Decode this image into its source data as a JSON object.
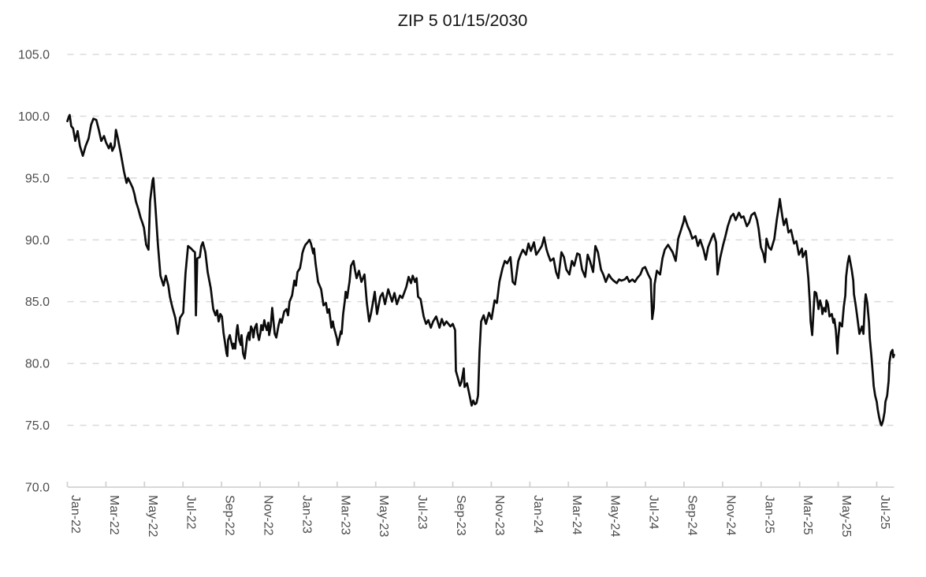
{
  "title": "ZIP 5 01/15/2030",
  "chart_data": {
    "type": "line",
    "title": "ZIP 5 01/15/2030",
    "xlabel": "",
    "ylabel": "",
    "x_unit": "months since Jan-2022",
    "x_tick_labels": [
      "Jan-22",
      "Mar-22",
      "May-22",
      "Jul-22",
      "Sep-22",
      "Nov-22",
      "Jan-23",
      "Mar-23",
      "May-23",
      "Jul-23",
      "Sep-23",
      "Nov-23",
      "Jan-24",
      "Mar-24",
      "May-24",
      "Jul-24",
      "Sep-24",
      "Nov-24",
      "Jan-25",
      "Mar-25",
      "May-25",
      "Jul-25"
    ],
    "x_tick_interval_months": 2,
    "y_tick_labels": [
      "105.0",
      "100.0",
      "95.0",
      "90.0",
      "85.0",
      "80.0",
      "75.0",
      "70.0"
    ],
    "y_ticks": [
      105.0,
      100.0,
      95.0,
      90.0,
      85.0,
      80.0,
      75.0,
      70.0
    ],
    "ylim": [
      70.0,
      105.0
    ],
    "xlim_months": [
      0,
      43.2
    ],
    "grid": "horizontal-dashed",
    "legend": "none",
    "line_color": "#0b0b0b",
    "grid_color": "#dcdcdc",
    "axis_color": "#d2d2d2",
    "label_color": "#4d4d4d",
    "title_color": "#141414",
    "series_name": "ZIP 5 01/15/2030 price",
    "points": [
      [
        0.0,
        99.6
      ],
      [
        0.06,
        99.9
      ],
      [
        0.12,
        100.1
      ],
      [
        0.2,
        99.2
      ],
      [
        0.3,
        99.0
      ],
      [
        0.41,
        98.0
      ],
      [
        0.53,
        98.8
      ],
      [
        0.65,
        97.6
      ],
      [
        0.8,
        96.8
      ],
      [
        0.95,
        97.6
      ],
      [
        1.1,
        98.2
      ],
      [
        1.23,
        99.3
      ],
      [
        1.35,
        99.8
      ],
      [
        1.5,
        99.7
      ],
      [
        1.63,
        98.9
      ],
      [
        1.76,
        98.0
      ],
      [
        1.9,
        98.4
      ],
      [
        2.0,
        97.9
      ],
      [
        2.15,
        97.4
      ],
      [
        2.25,
        97.8
      ],
      [
        2.33,
        97.2
      ],
      [
        2.45,
        97.6
      ],
      [
        2.52,
        98.9
      ],
      [
        2.62,
        98.2
      ],
      [
        2.78,
        96.9
      ],
      [
        2.94,
        95.5
      ],
      [
        3.07,
        94.6
      ],
      [
        3.15,
        95.0
      ],
      [
        3.27,
        94.6
      ],
      [
        3.39,
        94.2
      ],
      [
        3.48,
        93.7
      ],
      [
        3.56,
        93.1
      ],
      [
        3.68,
        92.5
      ],
      [
        3.8,
        91.8
      ],
      [
        3.89,
        91.4
      ],
      [
        3.97,
        91.0
      ],
      [
        4.09,
        89.6
      ],
      [
        4.21,
        89.2
      ],
      [
        4.29,
        93.1
      ],
      [
        4.42,
        94.8
      ],
      [
        4.46,
        95.0
      ],
      [
        4.58,
        92.4
      ],
      [
        4.7,
        89.6
      ],
      [
        4.83,
        87.1
      ],
      [
        4.99,
        86.3
      ],
      [
        5.11,
        87.1
      ],
      [
        5.24,
        86.3
      ],
      [
        5.32,
        85.4
      ],
      [
        5.44,
        84.6
      ],
      [
        5.6,
        83.7
      ],
      [
        5.73,
        82.4
      ],
      [
        5.85,
        83.7
      ],
      [
        6.01,
        84.1
      ],
      [
        6.13,
        87.3
      ],
      [
        6.26,
        89.5
      ],
      [
        6.42,
        89.3
      ],
      [
        6.54,
        89.1
      ],
      [
        6.62,
        89.0
      ],
      [
        6.67,
        83.9
      ],
      [
        6.74,
        88.5
      ],
      [
        6.87,
        88.6
      ],
      [
        6.95,
        89.5
      ],
      [
        7.03,
        89.8
      ],
      [
        7.16,
        89.0
      ],
      [
        7.28,
        87.4
      ],
      [
        7.44,
        86.1
      ],
      [
        7.57,
        84.4
      ],
      [
        7.69,
        83.9
      ],
      [
        7.77,
        84.3
      ],
      [
        7.85,
        83.4
      ],
      [
        7.94,
        84.0
      ],
      [
        8.02,
        83.8
      ],
      [
        8.1,
        82.5
      ],
      [
        8.18,
        81.7
      ],
      [
        8.26,
        80.8
      ],
      [
        8.3,
        80.6
      ],
      [
        8.34,
        81.9
      ],
      [
        8.43,
        82.3
      ],
      [
        8.51,
        81.7
      ],
      [
        8.59,
        81.2
      ],
      [
        8.63,
        81.6
      ],
      [
        8.71,
        81.2
      ],
      [
        8.79,
        82.7
      ],
      [
        8.83,
        83.1
      ],
      [
        8.92,
        81.9
      ],
      [
        9.0,
        81.5
      ],
      [
        9.04,
        82.3
      ],
      [
        9.12,
        80.8
      ],
      [
        9.2,
        80.4
      ],
      [
        9.33,
        82.1
      ],
      [
        9.41,
        82.5
      ],
      [
        9.45,
        81.9
      ],
      [
        9.53,
        83.0
      ],
      [
        9.61,
        82.7
      ],
      [
        9.65,
        82.1
      ],
      [
        9.73,
        82.9
      ],
      [
        9.82,
        83.2
      ],
      [
        9.86,
        82.5
      ],
      [
        9.94,
        81.9
      ],
      [
        10.02,
        82.5
      ],
      [
        10.06,
        83.1
      ],
      [
        10.14,
        82.7
      ],
      [
        10.22,
        83.5
      ],
      [
        10.27,
        83.1
      ],
      [
        10.35,
        82.7
      ],
      [
        10.43,
        83.3
      ],
      [
        10.47,
        82.3
      ],
      [
        10.55,
        83.0
      ],
      [
        10.63,
        84.5
      ],
      [
        10.76,
        82.4
      ],
      [
        10.84,
        82.1
      ],
      [
        10.96,
        83.1
      ],
      [
        11.04,
        83.6
      ],
      [
        11.12,
        83.3
      ],
      [
        11.25,
        84.2
      ],
      [
        11.37,
        84.4
      ],
      [
        11.45,
        83.9
      ],
      [
        11.53,
        85.0
      ],
      [
        11.66,
        85.5
      ],
      [
        11.78,
        86.7
      ],
      [
        11.86,
        86.3
      ],
      [
        11.94,
        87.4
      ],
      [
        12.07,
        87.7
      ],
      [
        12.15,
        88.4
      ],
      [
        12.19,
        88.9
      ],
      [
        12.27,
        89.3
      ],
      [
        12.35,
        89.6
      ],
      [
        12.47,
        89.8
      ],
      [
        12.56,
        90.0
      ],
      [
        12.64,
        89.7
      ],
      [
        12.76,
        88.9
      ],
      [
        12.8,
        89.3
      ],
      [
        12.88,
        88.1
      ],
      [
        13.01,
        86.6
      ],
      [
        13.17,
        86.0
      ],
      [
        13.29,
        84.7
      ],
      [
        13.42,
        84.9
      ],
      [
        13.5,
        84.1
      ],
      [
        13.58,
        84.4
      ],
      [
        13.7,
        82.9
      ],
      [
        13.78,
        83.4
      ],
      [
        13.82,
        83.0
      ],
      [
        13.99,
        82.0
      ],
      [
        14.03,
        81.5
      ],
      [
        14.11,
        82.0
      ],
      [
        14.19,
        82.6
      ],
      [
        14.23,
        82.4
      ],
      [
        14.31,
        84.0
      ],
      [
        14.4,
        85.1
      ],
      [
        14.44,
        85.8
      ],
      [
        14.52,
        85.3
      ],
      [
        14.6,
        86.2
      ],
      [
        14.64,
        86.6
      ],
      [
        14.72,
        87.9
      ],
      [
        14.85,
        88.3
      ],
      [
        14.93,
        87.5
      ],
      [
        15.01,
        86.9
      ],
      [
        15.13,
        87.5
      ],
      [
        15.26,
        86.6
      ],
      [
        15.42,
        87.2
      ],
      [
        15.54,
        84.9
      ],
      [
        15.66,
        83.4
      ],
      [
        15.75,
        84.0
      ],
      [
        15.83,
        84.7
      ],
      [
        15.95,
        85.8
      ],
      [
        16.07,
        84.0
      ],
      [
        16.24,
        85.4
      ],
      [
        16.36,
        85.7
      ],
      [
        16.48,
        84.8
      ],
      [
        16.65,
        86.0
      ],
      [
        16.85,
        85.0
      ],
      [
        16.97,
        85.7
      ],
      [
        17.1,
        84.8
      ],
      [
        17.26,
        85.5
      ],
      [
        17.38,
        85.3
      ],
      [
        17.59,
        86.2
      ],
      [
        17.71,
        87.0
      ],
      [
        17.83,
        86.5
      ],
      [
        17.92,
        87.1
      ],
      [
        18.04,
        86.6
      ],
      [
        18.12,
        86.9
      ],
      [
        18.2,
        85.4
      ],
      [
        18.33,
        85.2
      ],
      [
        18.49,
        83.8
      ],
      [
        18.61,
        83.2
      ],
      [
        18.73,
        83.5
      ],
      [
        18.86,
        82.9
      ],
      [
        18.98,
        83.4
      ],
      [
        19.14,
        83.8
      ],
      [
        19.31,
        82.9
      ],
      [
        19.43,
        83.6
      ],
      [
        19.55,
        83.1
      ],
      [
        19.67,
        83.4
      ],
      [
        19.88,
        83.0
      ],
      [
        20.0,
        83.2
      ],
      [
        20.12,
        82.7
      ],
      [
        20.16,
        79.4
      ],
      [
        20.25,
        78.9
      ],
      [
        20.37,
        78.2
      ],
      [
        20.45,
        78.5
      ],
      [
        20.57,
        79.6
      ],
      [
        20.61,
        78.1
      ],
      [
        20.74,
        78.4
      ],
      [
        20.82,
        77.8
      ],
      [
        20.94,
        76.9
      ],
      [
        20.98,
        76.6
      ],
      [
        21.06,
        77.0
      ],
      [
        21.15,
        76.7
      ],
      [
        21.23,
        76.8
      ],
      [
        21.31,
        77.4
      ],
      [
        21.39,
        81.0
      ],
      [
        21.47,
        83.4
      ],
      [
        21.6,
        83.9
      ],
      [
        21.72,
        83.2
      ],
      [
        21.88,
        84.1
      ],
      [
        22.01,
        83.6
      ],
      [
        22.17,
        85.1
      ],
      [
        22.29,
        84.9
      ],
      [
        22.42,
        86.6
      ],
      [
        22.58,
        87.7
      ],
      [
        22.7,
        88.3
      ],
      [
        22.82,
        88.1
      ],
      [
        22.99,
        88.6
      ],
      [
        23.11,
        86.6
      ],
      [
        23.23,
        86.4
      ],
      [
        23.4,
        88.3
      ],
      [
        23.52,
        88.8
      ],
      [
        23.64,
        89.2
      ],
      [
        23.8,
        88.8
      ],
      [
        23.93,
        89.7
      ],
      [
        24.05,
        89.1
      ],
      [
        24.21,
        89.8
      ],
      [
        24.33,
        88.8
      ],
      [
        24.46,
        89.1
      ],
      [
        24.62,
        89.5
      ],
      [
        24.74,
        90.2
      ],
      [
        24.87,
        89.2
      ],
      [
        24.95,
        88.8
      ],
      [
        25.07,
        88.3
      ],
      [
        25.23,
        88.5
      ],
      [
        25.36,
        87.4
      ],
      [
        25.48,
        86.9
      ],
      [
        25.64,
        89.0
      ],
      [
        25.77,
        88.6
      ],
      [
        25.89,
        87.6
      ],
      [
        26.05,
        87.2
      ],
      [
        26.18,
        88.3
      ],
      [
        26.3,
        87.9
      ],
      [
        26.46,
        88.9
      ],
      [
        26.58,
        88.8
      ],
      [
        26.71,
        87.6
      ],
      [
        26.87,
        87.0
      ],
      [
        27.0,
        88.8
      ],
      [
        27.12,
        88.3
      ],
      [
        27.28,
        87.4
      ],
      [
        27.4,
        89.5
      ],
      [
        27.53,
        89.0
      ],
      [
        27.69,
        87.6
      ],
      [
        27.81,
        87.2
      ],
      [
        27.94,
        86.6
      ],
      [
        28.1,
        87.2
      ],
      [
        28.22,
        86.9
      ],
      [
        28.34,
        86.7
      ],
      [
        28.51,
        86.5
      ],
      [
        28.63,
        86.8
      ],
      [
        28.75,
        86.7
      ],
      [
        28.92,
        86.8
      ],
      [
        29.04,
        87.0
      ],
      [
        29.16,
        86.6
      ],
      [
        29.32,
        86.8
      ],
      [
        29.45,
        86.6
      ],
      [
        29.57,
        86.9
      ],
      [
        29.73,
        87.2
      ],
      [
        29.86,
        87.7
      ],
      [
        29.98,
        87.8
      ],
      [
        30.14,
        87.2
      ],
      [
        30.27,
        86.8
      ],
      [
        30.35,
        83.6
      ],
      [
        30.43,
        84.5
      ],
      [
        30.47,
        86.4
      ],
      [
        30.59,
        87.5
      ],
      [
        30.76,
        87.2
      ],
      [
        30.88,
        88.5
      ],
      [
        31.0,
        89.2
      ],
      [
        31.17,
        89.6
      ],
      [
        31.29,
        89.3
      ],
      [
        31.41,
        89.0
      ],
      [
        31.57,
        88.3
      ],
      [
        31.7,
        90.1
      ],
      [
        31.82,
        90.7
      ],
      [
        31.98,
        91.5
      ],
      [
        32.02,
        91.9
      ],
      [
        32.19,
        91.1
      ],
      [
        32.31,
        90.7
      ],
      [
        32.43,
        90.1
      ],
      [
        32.6,
        90.3
      ],
      [
        32.72,
        89.5
      ],
      [
        32.84,
        90.0
      ],
      [
        33.01,
        89.2
      ],
      [
        33.13,
        88.4
      ],
      [
        33.25,
        89.4
      ],
      [
        33.42,
        90.1
      ],
      [
        33.54,
        90.5
      ],
      [
        33.66,
        89.8
      ],
      [
        33.74,
        87.2
      ],
      [
        33.87,
        88.5
      ],
      [
        34.03,
        89.6
      ],
      [
        34.15,
        90.3
      ],
      [
        34.27,
        91.1
      ],
      [
        34.44,
        91.9
      ],
      [
        34.56,
        92.1
      ],
      [
        34.68,
        91.6
      ],
      [
        34.85,
        92.2
      ],
      [
        34.97,
        91.8
      ],
      [
        35.09,
        91.9
      ],
      [
        35.26,
        91.1
      ],
      [
        35.38,
        91.4
      ],
      [
        35.5,
        92.0
      ],
      [
        35.66,
        92.2
      ],
      [
        35.79,
        91.6
      ],
      [
        35.87,
        90.9
      ],
      [
        35.99,
        89.4
      ],
      [
        36.11,
        88.9
      ],
      [
        36.2,
        88.2
      ],
      [
        36.28,
        90.1
      ],
      [
        36.4,
        89.4
      ],
      [
        36.52,
        89.2
      ],
      [
        36.69,
        90.1
      ],
      [
        36.81,
        91.6
      ],
      [
        36.93,
        92.8
      ],
      [
        36.97,
        93.3
      ],
      [
        37.1,
        91.9
      ],
      [
        37.18,
        91.2
      ],
      [
        37.3,
        91.7
      ],
      [
        37.42,
        90.6
      ],
      [
        37.55,
        90.8
      ],
      [
        37.71,
        89.7
      ],
      [
        37.83,
        89.9
      ],
      [
        37.96,
        88.8
      ],
      [
        38.12,
        89.3
      ],
      [
        38.16,
        88.6
      ],
      [
        38.32,
        89.1
      ],
      [
        38.45,
        86.9
      ],
      [
        38.53,
        84.9
      ],
      [
        38.57,
        83.4
      ],
      [
        38.65,
        82.3
      ],
      [
        38.78,
        85.8
      ],
      [
        38.86,
        85.7
      ],
      [
        38.94,
        84.9
      ],
      [
        38.98,
        84.4
      ],
      [
        39.06,
        85.1
      ],
      [
        39.14,
        84.6
      ],
      [
        39.18,
        84.0
      ],
      [
        39.26,
        84.5
      ],
      [
        39.35,
        84.2
      ],
      [
        39.39,
        85.1
      ],
      [
        39.47,
        84.8
      ],
      [
        39.55,
        83.8
      ],
      [
        39.67,
        84.0
      ],
      [
        39.75,
        83.3
      ],
      [
        39.8,
        83.6
      ],
      [
        39.88,
        82.7
      ],
      [
        39.96,
        80.8
      ],
      [
        40.0,
        82.0
      ],
      [
        40.08,
        83.3
      ],
      [
        40.16,
        83.1
      ],
      [
        40.2,
        83.0
      ],
      [
        40.29,
        84.6
      ],
      [
        40.37,
        85.5
      ],
      [
        40.41,
        87.0
      ],
      [
        40.49,
        88.1
      ],
      [
        40.57,
        88.7
      ],
      [
        40.7,
        87.6
      ],
      [
        40.78,
        86.7
      ],
      [
        40.82,
        85.6
      ],
      [
        40.9,
        84.8
      ],
      [
        40.98,
        83.9
      ],
      [
        41.1,
        82.4
      ],
      [
        41.19,
        82.8
      ],
      [
        41.23,
        83.0
      ],
      [
        41.31,
        82.4
      ],
      [
        41.39,
        85.0
      ],
      [
        41.43,
        85.6
      ],
      [
        41.51,
        84.9
      ],
      [
        41.6,
        83.3
      ],
      [
        41.64,
        82.0
      ],
      [
        41.72,
        80.7
      ],
      [
        41.8,
        79.1
      ],
      [
        41.84,
        78.2
      ],
      [
        41.92,
        77.4
      ],
      [
        42.0,
        76.9
      ],
      [
        42.05,
        76.3
      ],
      [
        42.13,
        75.6
      ],
      [
        42.21,
        75.1
      ],
      [
        42.25,
        75.0
      ],
      [
        42.33,
        75.4
      ],
      [
        42.41,
        76.1
      ],
      [
        42.45,
        76.9
      ],
      [
        42.54,
        77.4
      ],
      [
        42.62,
        78.6
      ],
      [
        42.66,
        80.1
      ],
      [
        42.74,
        80.9
      ],
      [
        42.82,
        81.1
      ],
      [
        42.86,
        80.5
      ],
      [
        42.9,
        80.7
      ]
    ]
  }
}
